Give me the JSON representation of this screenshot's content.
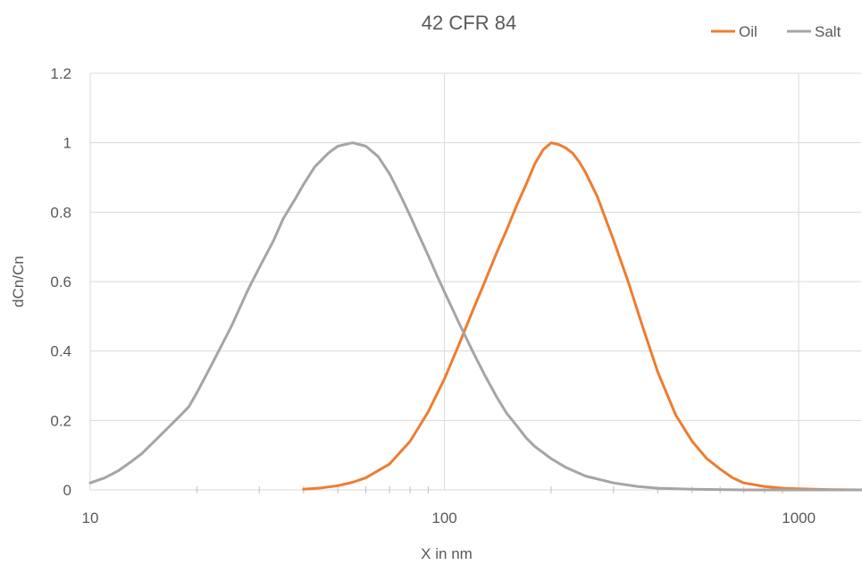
{
  "chart_data": {
    "type": "line",
    "title": "42 CFR 84",
    "xlabel": "X in nm",
    "ylabel": "dCn/Cn",
    "x_scale": "log",
    "xlim": [
      10,
      1500
    ],
    "ylim": [
      0,
      1.2
    ],
    "x_ticks": [
      {
        "value": 10,
        "label": "10"
      },
      {
        "value": 100,
        "label": "100"
      },
      {
        "value": 1000,
        "label": "1000"
      }
    ],
    "y_ticks": [
      {
        "value": 0,
        "label": "0"
      },
      {
        "value": 0.2,
        "label": "0.2"
      },
      {
        "value": 0.4,
        "label": "0.4"
      },
      {
        "value": 0.6,
        "label": "0.6"
      },
      {
        "value": 0.8,
        "label": "0.8"
      },
      {
        "value": 1,
        "label": "1"
      },
      {
        "value": 1.2,
        "label": "1.2"
      }
    ],
    "grid": true,
    "legend_position": "top-right",
    "series": [
      {
        "name": "Oil",
        "color": "#ED7D31",
        "points": [
          [
            40,
            0.002
          ],
          [
            45,
            0.006
          ],
          [
            50,
            0.012
          ],
          [
            55,
            0.022
          ],
          [
            60,
            0.035
          ],
          [
            70,
            0.075
          ],
          [
            80,
            0.14
          ],
          [
            90,
            0.225
          ],
          [
            100,
            0.32
          ],
          [
            110,
            0.42
          ],
          [
            120,
            0.515
          ],
          [
            130,
            0.6
          ],
          [
            140,
            0.68
          ],
          [
            150,
            0.75
          ],
          [
            160,
            0.82
          ],
          [
            170,
            0.88
          ],
          [
            180,
            0.94
          ],
          [
            190,
            0.98
          ],
          [
            200,
            1.0
          ],
          [
            210,
            0.995
          ],
          [
            220,
            0.985
          ],
          [
            230,
            0.97
          ],
          [
            240,
            0.945
          ],
          [
            250,
            0.915
          ],
          [
            270,
            0.845
          ],
          [
            300,
            0.72
          ],
          [
            330,
            0.6
          ],
          [
            360,
            0.48
          ],
          [
            400,
            0.34
          ],
          [
            450,
            0.215
          ],
          [
            500,
            0.14
          ],
          [
            550,
            0.09
          ],
          [
            600,
            0.06
          ],
          [
            650,
            0.035
          ],
          [
            700,
            0.02
          ],
          [
            800,
            0.01
          ],
          [
            900,
            0.005
          ],
          [
            1000,
            0.003
          ],
          [
            1200,
            0.001
          ],
          [
            1500,
            0.0
          ]
        ]
      },
      {
        "name": "Salt",
        "color": "#A5A5A5",
        "points": [
          [
            10,
            0.02
          ],
          [
            11,
            0.035
          ],
          [
            12,
            0.055
          ],
          [
            13,
            0.08
          ],
          [
            14,
            0.105
          ],
          [
            15,
            0.135
          ],
          [
            17,
            0.19
          ],
          [
            18,
            0.215
          ],
          [
            19,
            0.24
          ],
          [
            20,
            0.28
          ],
          [
            22,
            0.36
          ],
          [
            25,
            0.47
          ],
          [
            28,
            0.58
          ],
          [
            30,
            0.64
          ],
          [
            33,
            0.72
          ],
          [
            35,
            0.78
          ],
          [
            38,
            0.84
          ],
          [
            40,
            0.88
          ],
          [
            43,
            0.93
          ],
          [
            47,
            0.97
          ],
          [
            50,
            0.99
          ],
          [
            55,
            1.0
          ],
          [
            60,
            0.99
          ],
          [
            65,
            0.96
          ],
          [
            70,
            0.91
          ],
          [
            75,
            0.85
          ],
          [
            80,
            0.79
          ],
          [
            85,
            0.73
          ],
          [
            90,
            0.675
          ],
          [
            95,
            0.62
          ],
          [
            100,
            0.57
          ],
          [
            110,
            0.48
          ],
          [
            120,
            0.4
          ],
          [
            130,
            0.33
          ],
          [
            140,
            0.27
          ],
          [
            150,
            0.22
          ],
          [
            160,
            0.185
          ],
          [
            170,
            0.15
          ],
          [
            180,
            0.125
          ],
          [
            200,
            0.09
          ],
          [
            220,
            0.065
          ],
          [
            250,
            0.04
          ],
          [
            300,
            0.02
          ],
          [
            350,
            0.01
          ],
          [
            400,
            0.005
          ],
          [
            500,
            0.002
          ],
          [
            700,
            0.0
          ],
          [
            1000,
            0.0
          ],
          [
            1500,
            0.0
          ]
        ]
      }
    ]
  }
}
